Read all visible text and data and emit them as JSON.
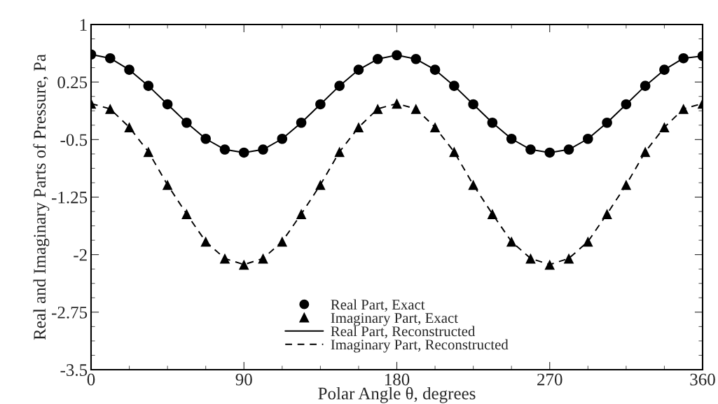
{
  "chart_data": {
    "type": "line",
    "xlabel": "Polar Angle θ, degrees",
    "ylabel": "Real and Imaginary Parts of Pressure, Pa",
    "x": [
      0,
      11.25,
      22.5,
      33.75,
      45,
      56.25,
      67.5,
      78.75,
      90,
      101.25,
      112.5,
      123.75,
      135,
      146.25,
      157.5,
      168.75,
      180,
      191.25,
      202.5,
      213.75,
      225,
      236.25,
      247.5,
      258.75,
      270,
      281.25,
      292.5,
      303.75,
      315,
      326.25,
      337.5,
      348.75,
      360
    ],
    "series": [
      {
        "name": "Real Part, Exact",
        "type": "scatter",
        "marker": "circle",
        "color": "#000000",
        "values": [
          0.61,
          0.56,
          0.41,
          0.2,
          -0.04,
          -0.28,
          -0.49,
          -0.63,
          -0.67,
          -0.63,
          -0.49,
          -0.28,
          -0.04,
          0.2,
          0.41,
          0.55,
          0.6,
          0.55,
          0.41,
          0.2,
          -0.04,
          -0.28,
          -0.49,
          -0.63,
          -0.67,
          -0.63,
          -0.49,
          -0.28,
          -0.04,
          0.2,
          0.41,
          0.56,
          0.59
        ]
      },
      {
        "name": "Imaginary Part, Exact",
        "type": "scatter",
        "marker": "triangle",
        "color": "#000000",
        "values": [
          -0.03,
          -0.1,
          -0.34,
          -0.66,
          -1.09,
          -1.47,
          -1.83,
          -2.05,
          -2.13,
          -2.05,
          -1.83,
          -1.47,
          -1.09,
          -0.66,
          -0.34,
          -0.1,
          -0.03,
          -0.1,
          -0.34,
          -0.66,
          -1.09,
          -1.47,
          -1.83,
          -2.05,
          -2.13,
          -2.05,
          -1.83,
          -1.47,
          -1.09,
          -0.66,
          -0.34,
          -0.1,
          -0.03
        ]
      },
      {
        "name": "Real Part, Reconstructed",
        "line_style": "solid",
        "color": "#000000",
        "values": [
          0.61,
          0.56,
          0.41,
          0.2,
          -0.04,
          -0.28,
          -0.49,
          -0.63,
          -0.67,
          -0.63,
          -0.49,
          -0.28,
          -0.04,
          0.2,
          0.41,
          0.55,
          0.6,
          0.55,
          0.41,
          0.2,
          -0.04,
          -0.28,
          -0.49,
          -0.63,
          -0.67,
          -0.63,
          -0.49,
          -0.28,
          -0.04,
          0.2,
          0.41,
          0.56,
          0.59
        ]
      },
      {
        "name": "Imaginary Part, Reconstructed",
        "line_style": "dashed",
        "color": "#000000",
        "values": [
          -0.03,
          -0.1,
          -0.34,
          -0.66,
          -1.09,
          -1.47,
          -1.83,
          -2.05,
          -2.13,
          -2.05,
          -1.83,
          -1.47,
          -1.09,
          -0.66,
          -0.34,
          -0.1,
          -0.03,
          -0.1,
          -0.34,
          -0.66,
          -1.09,
          -1.47,
          -1.83,
          -2.05,
          -2.13,
          -2.05,
          -1.83,
          -1.47,
          -1.09,
          -0.66,
          -0.34,
          -0.1,
          -0.03
        ]
      }
    ],
    "xlim": [
      0,
      360
    ],
    "xticks": [
      0,
      90,
      180,
      270,
      360
    ],
    "ylim": [
      -3.5,
      1
    ],
    "yticks": [
      -3.5,
      -2.75,
      -2,
      -1.25,
      -0.5,
      0.25,
      1
    ],
    "grid": false,
    "legend": "bottom"
  }
}
